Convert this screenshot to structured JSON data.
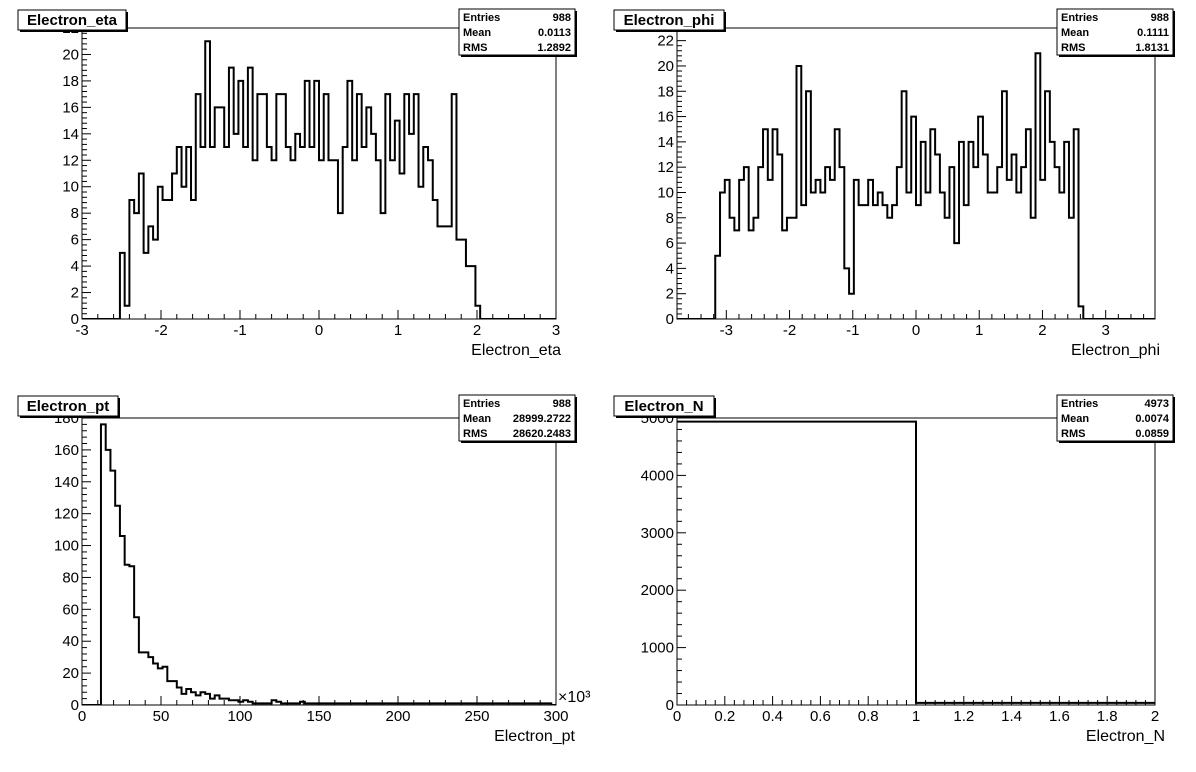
{
  "chart_data": [
    {
      "type": "bar",
      "title": "Electron_eta",
      "xlabel": "Electron_eta",
      "ylabel": "",
      "xlim": [
        -3,
        3
      ],
      "ylim": [
        0,
        22
      ],
      "x_ticks": [
        -3,
        -2,
        -1,
        0,
        1,
        2,
        3
      ],
      "y_ticks": [
        0,
        2,
        4,
        6,
        8,
        10,
        12,
        14,
        16,
        18,
        20,
        22
      ],
      "bin_width": 0.06,
      "bin_start": -3,
      "values": [
        0,
        0,
        0,
        0,
        0,
        0,
        0,
        0,
        5,
        1,
        9,
        8,
        11,
        5,
        7,
        6,
        10,
        9,
        9,
        11,
        13,
        10,
        13,
        9,
        17,
        13,
        21,
        13,
        16,
        16,
        13,
        19,
        14,
        18,
        13,
        19,
        12,
        17,
        17,
        13,
        12,
        17,
        17,
        13,
        12,
        14,
        13,
        18,
        13,
        18,
        12,
        17,
        12,
        12,
        8,
        13,
        18,
        12,
        17,
        13,
        16,
        14,
        12,
        8,
        17,
        12,
        15,
        11,
        17,
        14,
        17,
        10,
        13,
        12,
        9,
        7,
        7,
        7,
        17,
        6,
        6,
        4,
        4,
        1,
        0,
        0,
        0,
        0,
        0,
        0,
        0,
        0,
        0,
        0,
        0,
        0,
        0,
        0,
        0,
        0
      ],
      "stats": {
        "entries_label": "Entries",
        "entries": "988",
        "mean_label": "Mean",
        "mean": "0.0113",
        "rms_label": "RMS",
        "rms": "1.2892"
      },
      "exponent": ""
    },
    {
      "type": "bar",
      "title": "Electron_phi",
      "xlabel": "Electron_phi",
      "ylabel": "",
      "xlim": [
        -3.78,
        3.78
      ],
      "ylim": [
        0,
        23
      ],
      "x_ticks": [
        -3,
        -2,
        -1,
        0,
        1,
        2,
        3
      ],
      "y_ticks": [
        0,
        2,
        4,
        6,
        8,
        10,
        12,
        14,
        16,
        18,
        20,
        22
      ],
      "bin_width": 0.0756,
      "bin_start": -3.78,
      "values": [
        0,
        0,
        0,
        0,
        0,
        0,
        0,
        0,
        5,
        10,
        11,
        8,
        7,
        11,
        12,
        7,
        8,
        12,
        15,
        11,
        15,
        13,
        7,
        8,
        8,
        20,
        9,
        18,
        10,
        11,
        10,
        12,
        11,
        15,
        12,
        4,
        2,
        11,
        9,
        9,
        11,
        9,
        10,
        9,
        8,
        9,
        12,
        18,
        10,
        16,
        9,
        14,
        10,
        15,
        13,
        10,
        8,
        12,
        6,
        14,
        9,
        14,
        12,
        16,
        13,
        10,
        10,
        12,
        18,
        11,
        13,
        10,
        12,
        15,
        8,
        21,
        11,
        18,
        14,
        12,
        10,
        14,
        8,
        15,
        1,
        0,
        0,
        0,
        0,
        0,
        0,
        0,
        0,
        0,
        0,
        0,
        0,
        0,
        0,
        0
      ],
      "stats": {
        "entries_label": "Entries",
        "entries": "988",
        "mean_label": "Mean",
        "mean": "0.1111",
        "rms_label": "RMS",
        "rms": "1.8131"
      },
      "exponent": ""
    },
    {
      "type": "bar",
      "title": "Electron_pt",
      "xlabel": "Electron_pt",
      "ylabel": "",
      "xlim": [
        0,
        300
      ],
      "ylim": [
        0,
        180
      ],
      "x_ticks": [
        0,
        50,
        100,
        150,
        200,
        250,
        300
      ],
      "y_ticks": [
        0,
        20,
        40,
        60,
        80,
        100,
        120,
        140,
        160,
        180
      ],
      "bin_width": 3,
      "bin_start": 0,
      "values": [
        0,
        0,
        0,
        0,
        176,
        160,
        147,
        125,
        106,
        88,
        87,
        55,
        33,
        33,
        30,
        26,
        23,
        24,
        15,
        15,
        11,
        7,
        10,
        8,
        6,
        8,
        7,
        4,
        6,
        4,
        4,
        3,
        3,
        2,
        3,
        2,
        1,
        1,
        1,
        1,
        3,
        2,
        1,
        1,
        1,
        1,
        2,
        1,
        1,
        1,
        1,
        1,
        1,
        1,
        1,
        1,
        1,
        1,
        1,
        1,
        1,
        1,
        1,
        1,
        1,
        1,
        1,
        1,
        1,
        1,
        1,
        1,
        1,
        1,
        1,
        1,
        1,
        1,
        1,
        1,
        1,
        1,
        1,
        1,
        1,
        1,
        1,
        1,
        1,
        1,
        1,
        1,
        1,
        1,
        1,
        1,
        1,
        1,
        1,
        0
      ],
      "stats": {
        "entries_label": "Entries",
        "entries": "988",
        "mean_label": "Mean",
        "mean": "28999.2722",
        "rms_label": "RMS",
        "rms": "28620.2483"
      },
      "exponent": "×10³"
    },
    {
      "type": "bar",
      "title": "Electron_N",
      "xlabel": "Electron_N",
      "ylabel": "",
      "xlim": [
        0,
        2
      ],
      "ylim": [
        0,
        5000
      ],
      "x_ticks": [
        0,
        0.2,
        0.4,
        0.6,
        0.8,
        1,
        1.2,
        1.4,
        1.6,
        1.8,
        2
      ],
      "y_ticks": [
        0,
        1000,
        2000,
        3000,
        4000,
        5000
      ],
      "bin_width": 1,
      "bin_start": 0,
      "values": [
        4937,
        36
      ],
      "stats": {
        "entries_label": "Entries",
        "entries": "4973",
        "mean_label": "Mean",
        "mean": "0.0074",
        "rms_label": "RMS",
        "rms": "0.0859"
      },
      "exponent": ""
    }
  ]
}
